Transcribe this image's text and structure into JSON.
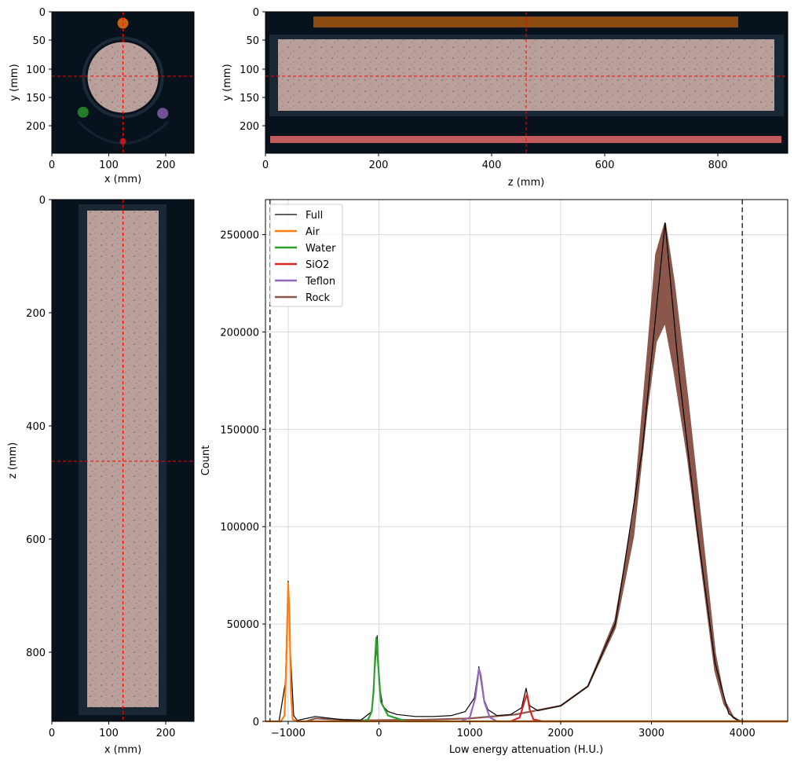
{
  "colors": {
    "background_dark": "#08121c",
    "rock": "#8c574b",
    "rock_fill": "#b9a09b",
    "air": "#ff7f0e",
    "water": "#2ca02c",
    "sio2": "#d62728",
    "teflon": "#9467bd",
    "full": "#000000",
    "crosshair": "#ff0000",
    "threshold": "#333333"
  },
  "views": {
    "axial": {
      "xlabel": "x (mm)",
      "ylabel": "y (mm)",
      "xticks": [
        "0",
        "100",
        "200"
      ],
      "yticks": [
        "0",
        "50",
        "100",
        "150",
        "200"
      ],
      "xlim": [
        0,
        250
      ],
      "ylim": [
        248,
        0
      ],
      "crosshair": {
        "x": 125,
        "y": 113
      },
      "markers": [
        {
          "label": "Air",
          "x": 125,
          "y": 20,
          "color": "#ff7f0e"
        },
        {
          "label": "Water",
          "x": 55,
          "y": 176,
          "color": "#2ca02c"
        },
        {
          "label": "Teflon",
          "x": 195,
          "y": 178,
          "color": "#9467bd"
        },
        {
          "label": "SiO2",
          "x": 125,
          "y": 227,
          "color": "#d62728"
        }
      ]
    },
    "coronal": {
      "xlabel": "z (mm)",
      "ylabel": "y (mm)",
      "xticks": [
        "0",
        "200",
        "400",
        "600",
        "800"
      ],
      "yticks": [
        "0",
        "50",
        "100",
        "150",
        "200"
      ],
      "xlim": [
        0,
        922
      ],
      "ylim": [
        248,
        0
      ],
      "crosshair": {
        "x": 460,
        "y": 113
      }
    },
    "sagittal": {
      "xlabel": "x (mm)",
      "ylabel": "z (mm)",
      "xticks": [
        "0",
        "100",
        "200"
      ],
      "yticks": [
        "0",
        "200",
        "400",
        "600",
        "800"
      ],
      "xlim": [
        0,
        250
      ],
      "ylim": [
        922,
        0
      ],
      "crosshair": {
        "x": 125,
        "y": 460
      }
    }
  },
  "chart_data": {
    "type": "line",
    "xlabel": "Low energy attenuation (H.U.)",
    "ylabel": "Count",
    "xlim": [
      -1250,
      4500
    ],
    "ylim": [
      0,
      268000
    ],
    "xticks": [
      "-1000",
      "0",
      "1000",
      "2000",
      "3000",
      "4000"
    ],
    "yticks": [
      "0",
      "50000",
      "100000",
      "150000",
      "200000",
      "250000"
    ],
    "grid": true,
    "legend_position": "top-left",
    "thresholds": [
      -1200,
      4000
    ],
    "series": [
      {
        "name": "Full",
        "color": "#000000",
        "x": [
          -1250,
          -1100,
          -1030,
          -1000,
          -980,
          -940,
          -900,
          -800,
          -700,
          -400,
          -200,
          -80,
          -40,
          -20,
          0,
          40,
          100,
          200,
          400,
          600,
          800,
          950,
          1050,
          1100,
          1150,
          1200,
          1300,
          1450,
          1570,
          1620,
          1660,
          1750,
          2000,
          2300,
          2600,
          2900,
          3050,
          3150,
          3300,
          3500,
          3700,
          3850,
          3950,
          4100,
          4500
        ],
        "y": [
          0,
          0,
          20000,
          72000,
          40000,
          3000,
          500,
          1500,
          2500,
          800,
          600,
          5000,
          30000,
          44000,
          20000,
          8000,
          5000,
          3500,
          2500,
          2500,
          3000,
          5000,
          12000,
          28000,
          12000,
          6000,
          3000,
          3500,
          7000,
          17000,
          8000,
          5500,
          8000,
          18000,
          50000,
          140000,
          210000,
          256000,
          180000,
          100000,
          30000,
          4000,
          500,
          0,
          0
        ]
      },
      {
        "name": "Air",
        "color": "#ff7f0e",
        "x": [
          -1250,
          -1080,
          -1040,
          -1020,
          -1000,
          -985,
          -970,
          -950,
          -900,
          4500
        ],
        "y": [
          0,
          0,
          3000,
          30000,
          71000,
          55000,
          15000,
          1000,
          0,
          0
        ]
      },
      {
        "name": "Water",
        "color": "#2ca02c",
        "x": [
          -200,
          -120,
          -80,
          -60,
          -40,
          -30,
          -10,
          20,
          100,
          200,
          300,
          4500
        ],
        "y": [
          0,
          1000,
          5000,
          15000,
          35000,
          43000,
          30000,
          10000,
          3000,
          1500,
          0,
          0
        ]
      },
      {
        "name": "SiO2",
        "color": "#d62728",
        "x": [
          1450,
          1550,
          1600,
          1630,
          1660,
          1700,
          1800,
          4500
        ],
        "y": [
          0,
          2000,
          10000,
          14000,
          6000,
          1000,
          0,
          0
        ]
      },
      {
        "name": "Teflon",
        "color": "#9467bd",
        "x": [
          900,
          1000,
          1060,
          1100,
          1120,
          1160,
          1220,
          1300,
          4500
        ],
        "y": [
          0,
          2000,
          12000,
          27000,
          24000,
          10000,
          2000,
          0,
          0
        ]
      },
      {
        "name": "Rock",
        "color": "#8c574b",
        "x": [
          -800,
          -700,
          -500,
          -200,
          0,
          500,
          1000,
          1500,
          2000,
          2300,
          2600,
          2800,
          2950,
          3050,
          3150,
          3250,
          3400,
          3550,
          3700,
          3800,
          3900,
          3970,
          4000,
          4500
        ],
        "y": [
          0,
          1500,
          1000,
          500,
          600,
          800,
          1500,
          3500,
          8000,
          18000,
          50000,
          100000,
          170000,
          210000,
          235000,
          200000,
          150000,
          90000,
          30000,
          10000,
          2000,
          300,
          0,
          0
        ],
        "band_upper": [
          0,
          1500,
          1000,
          500,
          600,
          800,
          1500,
          3500,
          8000,
          18000,
          52000,
          105000,
          185000,
          240000,
          256000,
          225000,
          165000,
          100000,
          35000,
          11000,
          2200,
          300,
          0,
          0
        ],
        "band_lower": [
          0,
          1500,
          1000,
          500,
          600,
          800,
          1500,
          3500,
          8000,
          18000,
          48000,
          95000,
          160000,
          195000,
          205000,
          180000,
          135000,
          80000,
          26000,
          9000,
          1800,
          300,
          0,
          0
        ]
      }
    ]
  }
}
